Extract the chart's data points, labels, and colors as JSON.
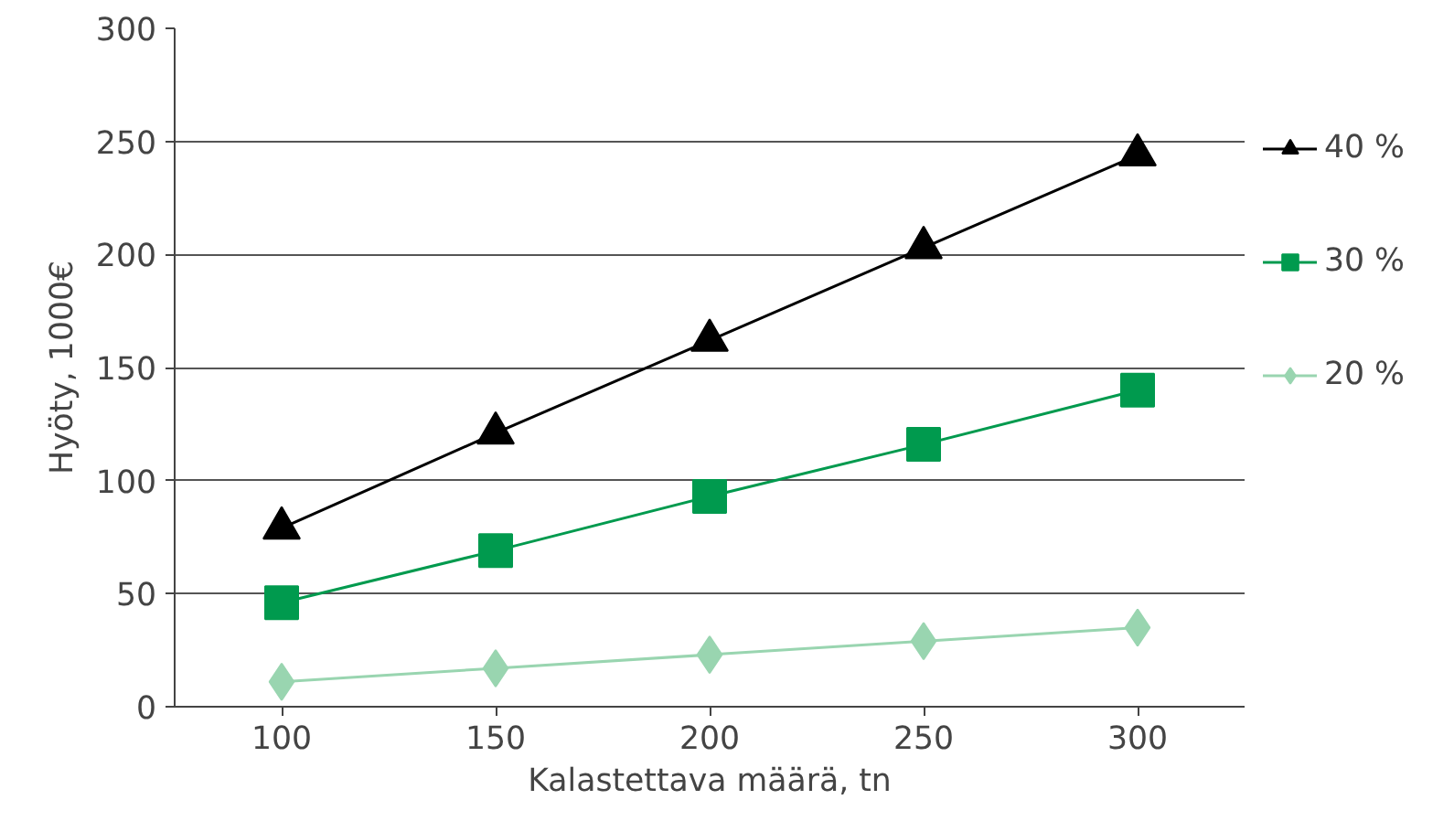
{
  "chart_data": {
    "type": "line",
    "xlabel": "Kalastettava määrä, tn",
    "ylabel": "Hyöty, 1000€",
    "categories": [
      "100",
      "150",
      "200",
      "250",
      "300"
    ],
    "series": [
      {
        "name": "40 %",
        "color": "#000000",
        "marker": "triangle",
        "values": [
          79,
          121,
          162,
          203,
          244
        ]
      },
      {
        "name": "30 %",
        "color": "#009a4e",
        "marker": "square",
        "values": [
          46,
          69,
          93,
          116,
          140
        ]
      },
      {
        "name": "20 %",
        "color": "#99d5b0",
        "marker": "diamond",
        "values": [
          11,
          17,
          23,
          29,
          35
        ]
      }
    ],
    "ylim": [
      0,
      300
    ],
    "yticks": [
      0,
      50,
      100,
      150,
      200,
      250,
      300
    ],
    "grid": "y",
    "legend": "right"
  }
}
